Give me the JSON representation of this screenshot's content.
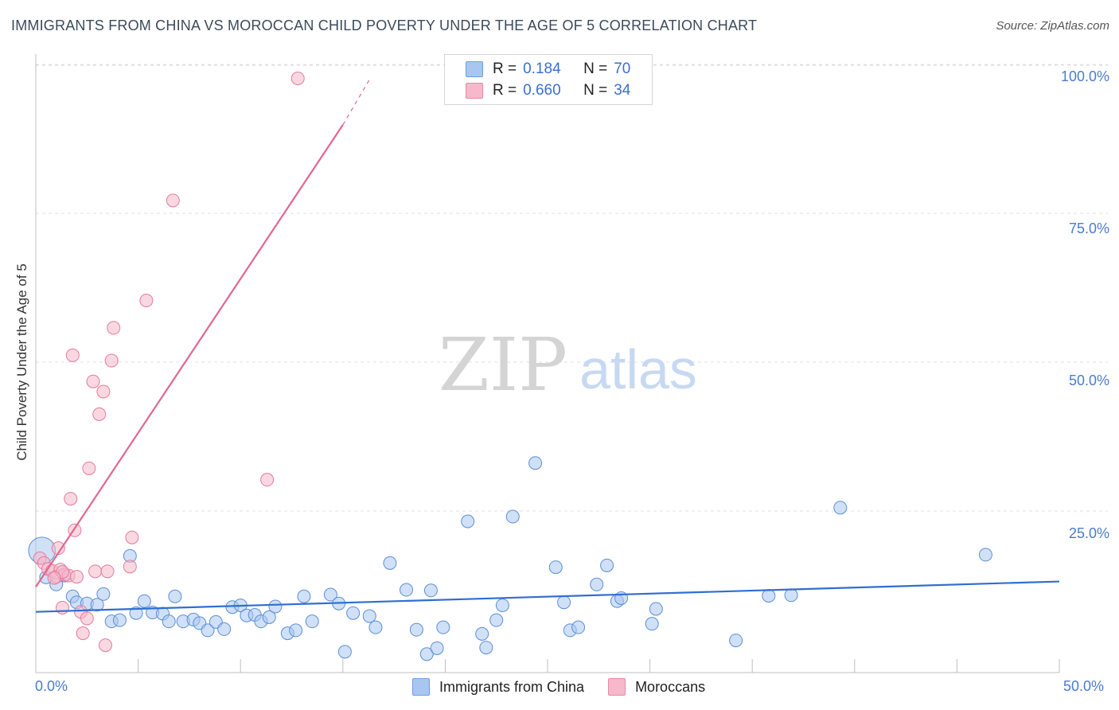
{
  "header": {
    "title": "IMMIGRANTS FROM CHINA VS MOROCCAN CHILD POVERTY UNDER THE AGE OF 5 CORRELATION CHART",
    "source": "Source: ZipAtlas.com"
  },
  "watermark": {
    "zip": "ZIP",
    "atlas": "atlas"
  },
  "legend": {
    "rows": [
      {
        "r_label": "R =",
        "r_value": "0.184",
        "n_label": "N =",
        "n_value": "70",
        "color": "#a9c6f0"
      },
      {
        "r_label": "R =",
        "r_value": "0.660",
        "n_label": "N =",
        "n_value": "34",
        "color": "#f6b8ca"
      }
    ]
  },
  "chart_data": {
    "type": "scatter",
    "title": "IMMIGRANTS FROM CHINA VS MOROCCAN CHILD POVERTY UNDER THE AGE OF 5 CORRELATION CHART",
    "xlabel": "",
    "ylabel": "Child Poverty Under the Age of 5",
    "xlim": [
      0,
      50
    ],
    "ylim": [
      0,
      100
    ],
    "x_tick_labels": [
      "0.0%",
      "50.0%"
    ],
    "y_tick_labels": [
      "100.0%",
      "75.0%",
      "50.0%",
      "25.0%"
    ],
    "y_tick_values": [
      100,
      75,
      50,
      25
    ],
    "grid": true,
    "series": [
      {
        "name": "Immigrants from China",
        "color": "#a9c6f0",
        "stroke": "#5b8fd6",
        "trend": {
          "x": [
            0,
            50
          ],
          "y": [
            10.2,
            15.3
          ],
          "color": "#2f6fd0"
        },
        "points": [
          [
            0.3,
            20.5,
            3
          ],
          [
            0.5,
            16.0,
            1
          ],
          [
            1.0,
            14.8,
            1
          ],
          [
            1.4,
            16.3,
            1
          ],
          [
            1.8,
            12.8,
            1
          ],
          [
            2.0,
            11.8,
            1
          ],
          [
            2.5,
            11.6,
            1
          ],
          [
            3.0,
            11.4,
            1
          ],
          [
            3.3,
            13.2,
            1
          ],
          [
            3.7,
            8.6,
            1
          ],
          [
            4.1,
            8.8,
            1
          ],
          [
            4.6,
            19.6,
            1
          ],
          [
            4.9,
            10.0,
            1
          ],
          [
            5.3,
            12.0,
            1
          ],
          [
            5.7,
            10.1,
            1
          ],
          [
            6.2,
            9.9,
            1
          ],
          [
            6.5,
            8.6,
            1
          ],
          [
            6.8,
            12.8,
            1
          ],
          [
            7.2,
            8.6,
            1
          ],
          [
            7.7,
            8.9,
            1
          ],
          [
            8.0,
            8.3,
            1
          ],
          [
            8.4,
            7.1,
            1
          ],
          [
            8.8,
            8.5,
            1
          ],
          [
            9.2,
            7.3,
            1
          ],
          [
            9.6,
            11.0,
            1
          ],
          [
            10.0,
            11.3,
            1
          ],
          [
            10.3,
            9.6,
            1
          ],
          [
            10.7,
            9.7,
            1
          ],
          [
            11.0,
            8.6,
            1
          ],
          [
            11.4,
            9.3,
            1
          ],
          [
            11.7,
            11.1,
            1
          ],
          [
            12.3,
            6.6,
            1
          ],
          [
            12.7,
            7.1,
            1
          ],
          [
            13.1,
            12.8,
            1
          ],
          [
            13.5,
            8.6,
            1
          ],
          [
            14.4,
            13.1,
            1
          ],
          [
            14.8,
            11.6,
            1
          ],
          [
            15.1,
            3.5,
            1
          ],
          [
            15.5,
            10.0,
            1
          ],
          [
            16.3,
            9.5,
            1
          ],
          [
            16.6,
            7.6,
            1
          ],
          [
            17.3,
            18.4,
            1
          ],
          [
            18.1,
            13.9,
            1
          ],
          [
            18.6,
            7.2,
            1
          ],
          [
            19.1,
            3.1,
            1
          ],
          [
            19.3,
            13.8,
            1
          ],
          [
            19.6,
            4.1,
            1
          ],
          [
            19.9,
            7.6,
            1
          ],
          [
            21.1,
            25.4,
            1
          ],
          [
            21.8,
            6.5,
            1
          ],
          [
            22.0,
            4.2,
            1
          ],
          [
            22.5,
            8.8,
            1
          ],
          [
            22.8,
            11.3,
            1
          ],
          [
            23.3,
            26.2,
            1
          ],
          [
            24.4,
            35.2,
            1
          ],
          [
            25.4,
            17.7,
            1
          ],
          [
            25.8,
            11.8,
            1
          ],
          [
            26.1,
            7.1,
            1
          ],
          [
            26.5,
            7.6,
            1
          ],
          [
            27.4,
            14.8,
            1
          ],
          [
            27.9,
            18.0,
            1
          ],
          [
            28.4,
            12.0,
            1
          ],
          [
            28.6,
            12.5,
            1
          ],
          [
            30.1,
            8.2,
            1
          ],
          [
            30.3,
            10.7,
            1
          ],
          [
            34.2,
            5.4,
            1
          ],
          [
            35.8,
            12.9,
            1
          ],
          [
            36.9,
            13.0,
            1
          ],
          [
            39.3,
            27.7,
            1
          ],
          [
            46.4,
            19.8,
            1
          ]
        ]
      },
      {
        "name": "Moroccans",
        "color": "#f6b8ca",
        "stroke": "#e57a9b",
        "trend": {
          "x": [
            0,
            15.0
          ],
          "y": [
            14.4,
            92.0
          ],
          "dash_x": [
            15.0,
            16.3
          ],
          "dash_y": [
            92.0,
            99.6
          ],
          "color": "#e0678f"
        },
        "points": [
          [
            0.2,
            19.2,
            1
          ],
          [
            0.4,
            18.4,
            1
          ],
          [
            0.6,
            17.4,
            1
          ],
          [
            0.8,
            17.1,
            1
          ],
          [
            1.0,
            16.1,
            1
          ],
          [
            1.2,
            17.3,
            1
          ],
          [
            1.1,
            20.9,
            1
          ],
          [
            1.4,
            16.5,
            1
          ],
          [
            1.6,
            16.3,
            1
          ],
          [
            1.7,
            29.2,
            1
          ],
          [
            1.9,
            23.9,
            1
          ],
          [
            2.0,
            16.1,
            1
          ],
          [
            2.2,
            10.2,
            1
          ],
          [
            2.3,
            6.6,
            1
          ],
          [
            2.5,
            9.1,
            1
          ],
          [
            2.6,
            34.3,
            1
          ],
          [
            2.8,
            48.9,
            1
          ],
          [
            2.9,
            17.0,
            1
          ],
          [
            3.1,
            43.4,
            1
          ],
          [
            3.3,
            47.2,
            1
          ],
          [
            3.4,
            4.6,
            1
          ],
          [
            3.5,
            17.0,
            1
          ],
          [
            3.7,
            52.4,
            1
          ],
          [
            3.8,
            57.9,
            1
          ],
          [
            4.6,
            17.8,
            1
          ],
          [
            4.7,
            22.7,
            1
          ],
          [
            5.4,
            62.5,
            1
          ],
          [
            6.7,
            79.3,
            1
          ],
          [
            11.3,
            32.4,
            1
          ],
          [
            12.8,
            99.8,
            1
          ],
          [
            1.3,
            16.9,
            1
          ],
          [
            0.9,
            15.9,
            1
          ],
          [
            1.8,
            53.3,
            1
          ],
          [
            1.3,
            10.9,
            1
          ]
        ]
      }
    ]
  }
}
